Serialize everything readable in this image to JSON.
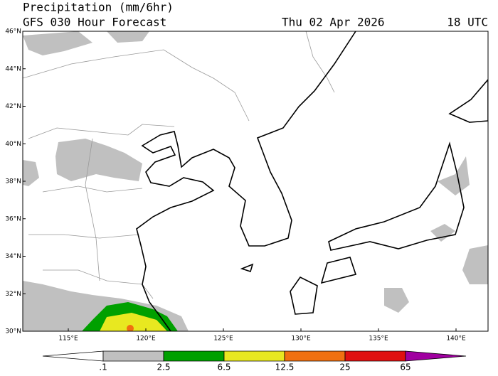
{
  "header": {
    "title": "Precipitation (mm/6hr)",
    "subtitle": "GFS 030 Hour Forecast",
    "date": "Thu 02 Apr 2026",
    "time": "18 UTC"
  },
  "axes": {
    "lat": [
      "46°N",
      "44°N",
      "42°N",
      "40°N",
      "38°N",
      "36°N",
      "34°N",
      "32°N",
      "30°N"
    ],
    "lon": [
      "115°E",
      "120°E",
      "125°E",
      "130°E",
      "135°E",
      "140°E"
    ]
  },
  "colorbar": {
    "labels": [
      ".1",
      "2.5",
      "6.5",
      "12.5",
      "25",
      "65"
    ],
    "colors": [
      "#ffffff",
      "#c0c0c0",
      "#00a000",
      "#e8e820",
      "#f07010",
      "#e01010",
      "#a000a0"
    ]
  }
}
